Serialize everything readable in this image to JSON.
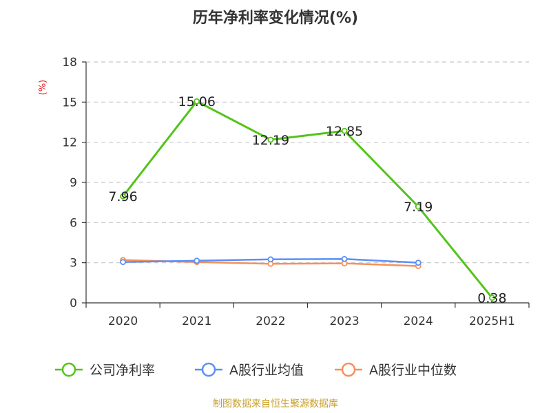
{
  "chart_data": {
    "type": "line",
    "title": "历年净利率变化情况(%)",
    "ylabel": "(%)",
    "categories": [
      "2020",
      "2021",
      "2022",
      "2023",
      "2024",
      "2025H1"
    ],
    "y_ticks": [
      "0",
      "3",
      "6",
      "9",
      "12",
      "15",
      "18"
    ],
    "ylim": [
      0,
      18
    ],
    "grid": true,
    "legend_position": "bottom",
    "series": [
      {
        "name": "公司净利率",
        "color": "#52c41a",
        "values": [
          7.96,
          15.06,
          12.19,
          12.85,
          7.19,
          0.38
        ],
        "labels": [
          "7.96",
          "15.06",
          "12.19",
          "12.85",
          "7.19",
          "0.38"
        ]
      },
      {
        "name": "A股行业均值",
        "color": "#5b8ff9",
        "values": [
          3.05,
          3.15,
          3.25,
          3.28,
          3.0,
          null
        ]
      },
      {
        "name": "A股行业中位数",
        "color": "#f6905a",
        "values": [
          3.2,
          3.05,
          2.92,
          2.95,
          2.75,
          null
        ]
      }
    ]
  },
  "source": {
    "text": "制图数据来自恒生聚源数据库",
    "color": "#c8a02a"
  },
  "ylabel_color": "#e02020"
}
